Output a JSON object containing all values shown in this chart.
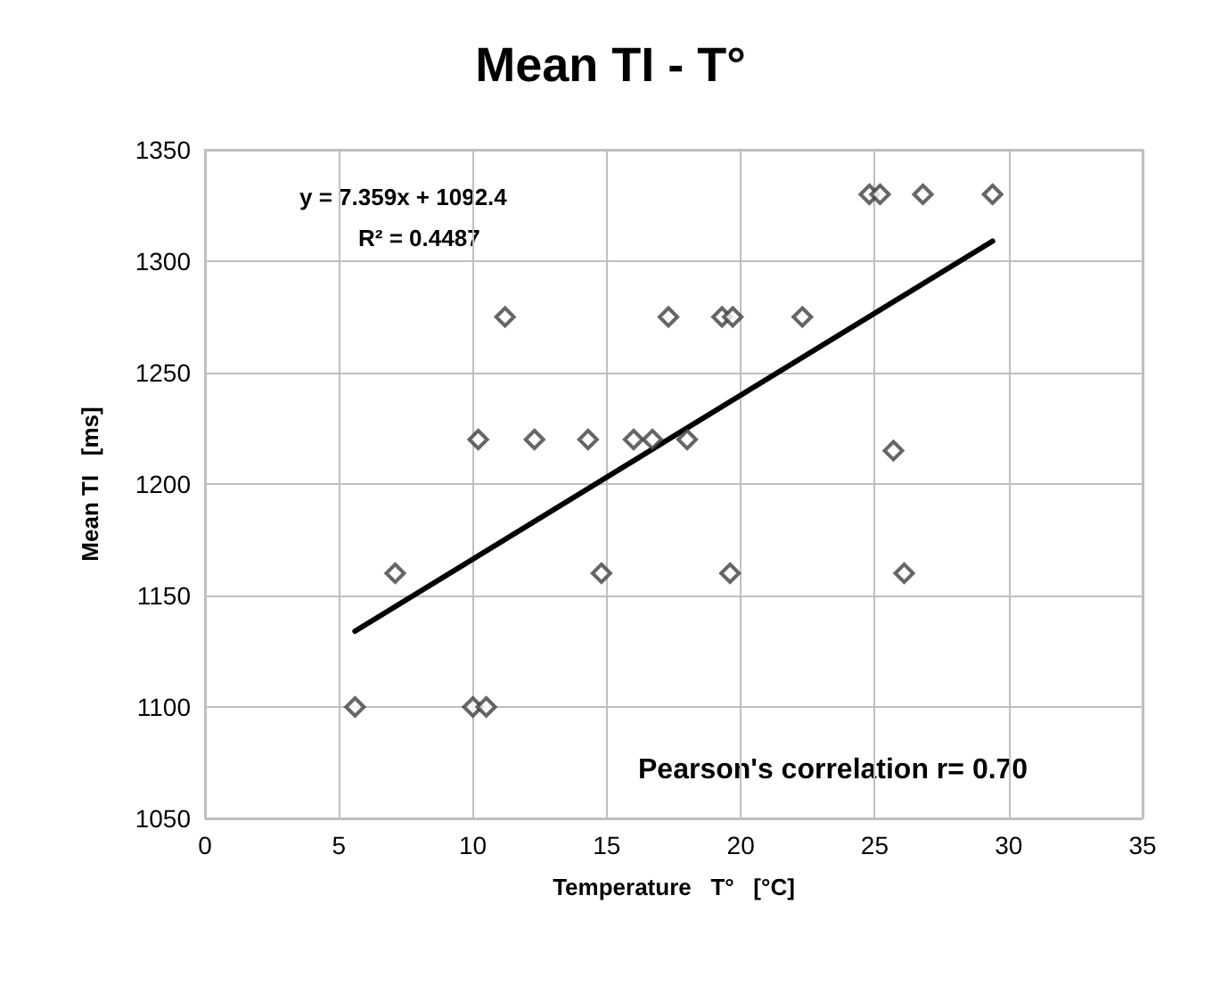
{
  "chart_data": {
    "type": "scatter",
    "title": "Mean TI - T°",
    "xlabel": "Temperature   T°   [°C]",
    "ylabel": "Mean TI   [ms]",
    "xlim": [
      0,
      35
    ],
    "xticks": [
      0,
      5,
      10,
      15,
      20,
      25,
      30,
      35
    ],
    "ylim": [
      1050,
      1350
    ],
    "yticks": [
      1050,
      1100,
      1150,
      1200,
      1250,
      1300,
      1350
    ],
    "grid": true,
    "marker": "diamond",
    "annotations": [
      "y = 7.359x + 1092.4",
      "R² = 0.4487",
      "Pearson's correlation r= 0.70"
    ],
    "series": [
      {
        "color": "#404040",
        "x": [
          5.6,
          7.1,
          10.0,
          10.5,
          10.2,
          11.2,
          12.3,
          14.3,
          14.8,
          16.0,
          16.7,
          17.3,
          18.0,
          19.3,
          19.6,
          19.7,
          22.3,
          24.8,
          25.2,
          26.8,
          29.4,
          25.7,
          26.1
        ],
        "values": [
          1100,
          1160,
          1100,
          1100,
          1220,
          1275,
          1220,
          1220,
          1160,
          1220,
          1220,
          1275,
          1220,
          1275,
          1160,
          1275,
          1275,
          1330,
          1330,
          1330,
          1330,
          1215,
          1160
        ]
      },
      {
        "type": "line",
        "color": "#000000",
        "marker": "none",
        "line_style": "solid",
        "x": [
          5.6,
          29.4
        ],
        "values": [
          1134,
          1309
        ]
      }
    ]
  }
}
